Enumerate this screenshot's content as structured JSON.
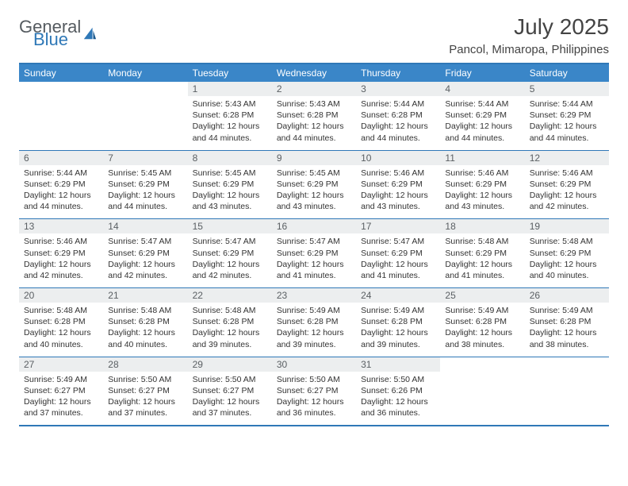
{
  "brand": {
    "part1": "General",
    "part2": "Blue",
    "color_general": "#555b60",
    "color_blue": "#2f78b7"
  },
  "title": {
    "month": "July 2025",
    "location": "Pancol, Mimaropa, Philippines",
    "title_fontsize": 28,
    "title_color": "#444444"
  },
  "theme": {
    "header_bg": "#3a86c8",
    "header_text": "#ffffff",
    "daynum_bg": "#eceeef",
    "daynum_text": "#5a5f63",
    "border_color": "#2f78b7",
    "body_text": "#333333",
    "page_bg": "#ffffff"
  },
  "weekdays": [
    "Sunday",
    "Monday",
    "Tuesday",
    "Wednesday",
    "Thursday",
    "Friday",
    "Saturday"
  ],
  "weeks": [
    {
      "nums": [
        "",
        "",
        "1",
        "2",
        "3",
        "4",
        "5"
      ],
      "cells": [
        null,
        null,
        {
          "sunrise": "5:43 AM",
          "sunset": "6:28 PM",
          "daylight": "12 hours and 44 minutes."
        },
        {
          "sunrise": "5:43 AM",
          "sunset": "6:28 PM",
          "daylight": "12 hours and 44 minutes."
        },
        {
          "sunrise": "5:44 AM",
          "sunset": "6:28 PM",
          "daylight": "12 hours and 44 minutes."
        },
        {
          "sunrise": "5:44 AM",
          "sunset": "6:29 PM",
          "daylight": "12 hours and 44 minutes."
        },
        {
          "sunrise": "5:44 AM",
          "sunset": "6:29 PM",
          "daylight": "12 hours and 44 minutes."
        }
      ]
    },
    {
      "nums": [
        "6",
        "7",
        "8",
        "9",
        "10",
        "11",
        "12"
      ],
      "cells": [
        {
          "sunrise": "5:44 AM",
          "sunset": "6:29 PM",
          "daylight": "12 hours and 44 minutes."
        },
        {
          "sunrise": "5:45 AM",
          "sunset": "6:29 PM",
          "daylight": "12 hours and 44 minutes."
        },
        {
          "sunrise": "5:45 AM",
          "sunset": "6:29 PM",
          "daylight": "12 hours and 43 minutes."
        },
        {
          "sunrise": "5:45 AM",
          "sunset": "6:29 PM",
          "daylight": "12 hours and 43 minutes."
        },
        {
          "sunrise": "5:46 AM",
          "sunset": "6:29 PM",
          "daylight": "12 hours and 43 minutes."
        },
        {
          "sunrise": "5:46 AM",
          "sunset": "6:29 PM",
          "daylight": "12 hours and 43 minutes."
        },
        {
          "sunrise": "5:46 AM",
          "sunset": "6:29 PM",
          "daylight": "12 hours and 42 minutes."
        }
      ]
    },
    {
      "nums": [
        "13",
        "14",
        "15",
        "16",
        "17",
        "18",
        "19"
      ],
      "cells": [
        {
          "sunrise": "5:46 AM",
          "sunset": "6:29 PM",
          "daylight": "12 hours and 42 minutes."
        },
        {
          "sunrise": "5:47 AM",
          "sunset": "6:29 PM",
          "daylight": "12 hours and 42 minutes."
        },
        {
          "sunrise": "5:47 AM",
          "sunset": "6:29 PM",
          "daylight": "12 hours and 42 minutes."
        },
        {
          "sunrise": "5:47 AM",
          "sunset": "6:29 PM",
          "daylight": "12 hours and 41 minutes."
        },
        {
          "sunrise": "5:47 AM",
          "sunset": "6:29 PM",
          "daylight": "12 hours and 41 minutes."
        },
        {
          "sunrise": "5:48 AM",
          "sunset": "6:29 PM",
          "daylight": "12 hours and 41 minutes."
        },
        {
          "sunrise": "5:48 AM",
          "sunset": "6:29 PM",
          "daylight": "12 hours and 40 minutes."
        }
      ]
    },
    {
      "nums": [
        "20",
        "21",
        "22",
        "23",
        "24",
        "25",
        "26"
      ],
      "cells": [
        {
          "sunrise": "5:48 AM",
          "sunset": "6:28 PM",
          "daylight": "12 hours and 40 minutes."
        },
        {
          "sunrise": "5:48 AM",
          "sunset": "6:28 PM",
          "daylight": "12 hours and 40 minutes."
        },
        {
          "sunrise": "5:48 AM",
          "sunset": "6:28 PM",
          "daylight": "12 hours and 39 minutes."
        },
        {
          "sunrise": "5:49 AM",
          "sunset": "6:28 PM",
          "daylight": "12 hours and 39 minutes."
        },
        {
          "sunrise": "5:49 AM",
          "sunset": "6:28 PM",
          "daylight": "12 hours and 39 minutes."
        },
        {
          "sunrise": "5:49 AM",
          "sunset": "6:28 PM",
          "daylight": "12 hours and 38 minutes."
        },
        {
          "sunrise": "5:49 AM",
          "sunset": "6:28 PM",
          "daylight": "12 hours and 38 minutes."
        }
      ]
    },
    {
      "nums": [
        "27",
        "28",
        "29",
        "30",
        "31",
        "",
        ""
      ],
      "cells": [
        {
          "sunrise": "5:49 AM",
          "sunset": "6:27 PM",
          "daylight": "12 hours and 37 minutes."
        },
        {
          "sunrise": "5:50 AM",
          "sunset": "6:27 PM",
          "daylight": "12 hours and 37 minutes."
        },
        {
          "sunrise": "5:50 AM",
          "sunset": "6:27 PM",
          "daylight": "12 hours and 37 minutes."
        },
        {
          "sunrise": "5:50 AM",
          "sunset": "6:27 PM",
          "daylight": "12 hours and 36 minutes."
        },
        {
          "sunrise": "5:50 AM",
          "sunset": "6:26 PM",
          "daylight": "12 hours and 36 minutes."
        },
        null,
        null
      ]
    }
  ],
  "labels": {
    "sunrise": "Sunrise:",
    "sunset": "Sunset:",
    "daylight": "Daylight:"
  }
}
